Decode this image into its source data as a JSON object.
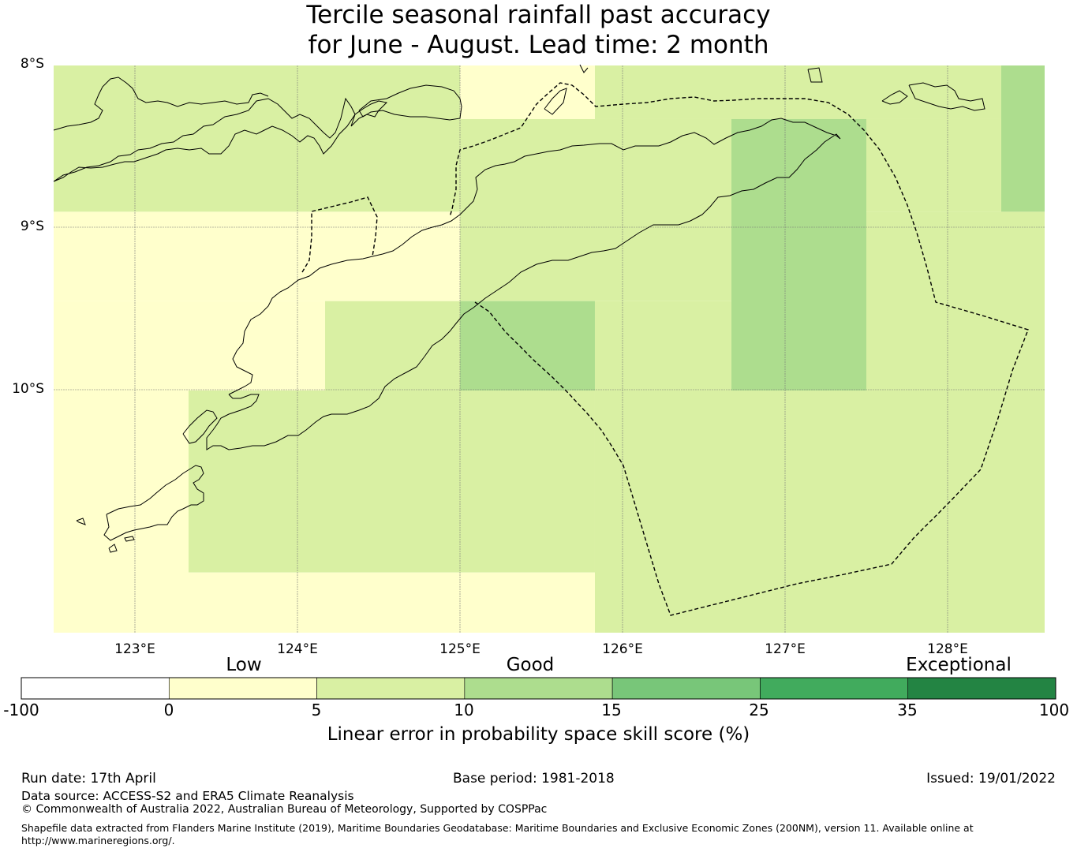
{
  "title": {
    "line1": "Tercile seasonal rainfall past accuracy",
    "line2": "for June - August. Lead time: 2 month"
  },
  "map": {
    "lat_labels": [
      "8°S",
      "9°S",
      "10°S"
    ],
    "lon_labels": [
      "123°E",
      "124°E",
      "125°E",
      "126°E",
      "127°E",
      "128°E"
    ],
    "lon_range": [
      122.5,
      128.6
    ],
    "lat_range": [
      -8.0,
      -11.5
    ],
    "skill_cells": [
      {
        "lon": [
          122.5,
          125.0
        ],
        "lat": [
          -8.0,
          -8.9
        ],
        "category": "5-10"
      },
      {
        "lon": [
          125.0,
          125.83
        ],
        "lat": [
          -8.0,
          -8.33
        ],
        "category": "0-5"
      },
      {
        "lon": [
          125.83,
          128.33
        ],
        "lat": [
          -8.0,
          -8.33
        ],
        "category": "5-10"
      },
      {
        "lon": [
          128.33,
          128.6
        ],
        "lat": [
          -8.0,
          -8.9
        ],
        "category": "10-15"
      },
      {
        "lon": [
          125.0,
          126.67
        ],
        "lat": [
          -8.33,
          -9.45
        ],
        "category": "5-10"
      },
      {
        "lon": [
          126.67,
          127.5
        ],
        "lat": [
          -8.33,
          -10.0
        ],
        "category": "10-15"
      },
      {
        "lon": [
          127.5,
          128.33
        ],
        "lat": [
          -8.33,
          -8.9
        ],
        "category": "5-10"
      },
      {
        "lon": [
          122.5,
          125.0
        ],
        "lat": [
          -8.9,
          -9.45
        ],
        "category": "0-5"
      },
      {
        "lon": [
          127.5,
          128.6
        ],
        "lat": [
          -8.9,
          -10.0
        ],
        "category": "5-10"
      },
      {
        "lon": [
          122.5,
          124.17
        ],
        "lat": [
          -9.45,
          -10.0
        ],
        "category": "0-5"
      },
      {
        "lon": [
          124.17,
          125.0
        ],
        "lat": [
          -9.45,
          -10.0
        ],
        "category": "5-10"
      },
      {
        "lon": [
          125.0,
          125.83
        ],
        "lat": [
          -9.45,
          -10.0
        ],
        "category": "10-15"
      },
      {
        "lon": [
          125.83,
          126.67
        ],
        "lat": [
          -9.45,
          -10.0
        ],
        "category": "5-10"
      },
      {
        "lon": [
          122.5,
          123.33
        ],
        "lat": [
          -10.0,
          -11.5
        ],
        "category": "0-5"
      },
      {
        "lon": [
          123.33,
          125.83
        ],
        "lat": [
          -10.0,
          -11.12
        ],
        "category": "5-10"
      },
      {
        "lon": [
          125.83,
          128.6
        ],
        "lat": [
          -10.0,
          -11.5
        ],
        "category": "5-10"
      },
      {
        "lon": [
          123.33,
          125.83
        ],
        "lat": [
          -11.12,
          -11.5
        ],
        "category": "0-5"
      }
    ]
  },
  "colorbar": {
    "category_labels": [
      "Low",
      "Good",
      "Exceptional"
    ],
    "bins": [
      {
        "from": -100,
        "to": 0,
        "color": "#ffffff"
      },
      {
        "from": 0,
        "to": 5,
        "color": "#ffffcc"
      },
      {
        "from": 5,
        "to": 10,
        "color": "#d9f0a3"
      },
      {
        "from": 10,
        "to": 15,
        "color": "#addd8e"
      },
      {
        "from": 15,
        "to": 25,
        "color": "#78c679"
      },
      {
        "from": 25,
        "to": 35,
        "color": "#41ab5d"
      },
      {
        "from": 35,
        "to": 100,
        "color": "#238443"
      }
    ],
    "tick_labels": [
      "-100",
      "0",
      "5",
      "10",
      "15",
      "25",
      "35",
      "100"
    ],
    "title": "Linear error in probability space skill score (%)"
  },
  "footer": {
    "run_date": "Run date: 17th April",
    "base_period": "Base period: 1981-2018",
    "issued": "Issued: 19/01/2022",
    "data_source": "Data source: ACCESS-S2 and ERA5 Climate Reanalysis",
    "copyright": "© Commonwealth of Australia 2022, Australian Bureau of Meteorology, Supported by COSPPac",
    "shapefile_line1": "Shapefile data extracted from Flanders Marine Institute (2019), Maritime Boundaries Geodatabase: Maritime Boundaries and Exclusive Economic Zones (200NM), version 11. Available online at",
    "shapefile_line2": "http://www.marineregions.org/."
  }
}
